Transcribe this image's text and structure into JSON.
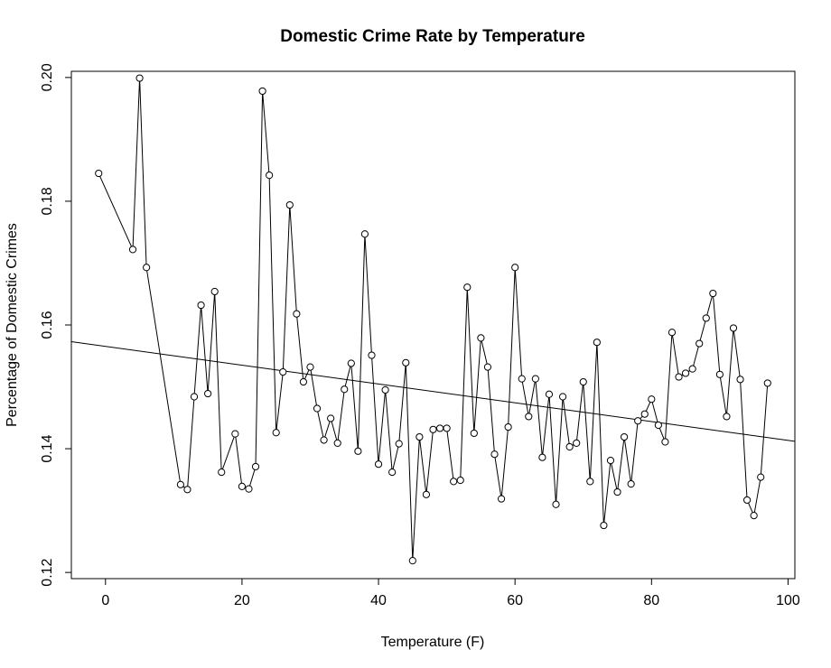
{
  "chart_data": {
    "type": "line",
    "title": "Domestic Crime Rate by Temperature",
    "xlabel": "Temperature (F)",
    "ylabel": "Percentage of Domestic Crimes",
    "xlim": [
      -5,
      101
    ],
    "ylim": [
      0.119,
      0.201
    ],
    "x_ticks": [
      0,
      20,
      40,
      60,
      80,
      100
    ],
    "x_tick_labels": [
      "0",
      "20",
      "40",
      "60",
      "80",
      "100"
    ],
    "y_ticks": [
      0.12,
      0.14,
      0.16,
      0.18,
      0.2
    ],
    "y_tick_labels": [
      "0.12",
      "0.14",
      "0.16",
      "0.18",
      "0.20"
    ],
    "grid": false,
    "marker": "open-circle",
    "series": [
      {
        "x": [
          -1,
          4,
          5,
          6,
          11,
          12,
          13,
          14,
          15,
          16,
          17,
          19,
          20,
          21,
          22,
          23,
          24,
          25,
          26,
          27,
          28,
          29,
          30,
          31,
          32,
          33,
          34,
          35,
          36,
          37,
          38,
          39,
          40,
          41,
          42,
          43,
          44,
          45,
          46,
          47,
          48,
          49,
          50,
          51,
          52,
          53,
          54,
          55,
          56,
          57,
          58,
          59,
          60,
          61,
          62,
          63,
          64,
          65,
          66,
          67,
          68,
          69,
          70,
          71,
          72,
          73,
          74,
          75,
          76,
          77,
          78,
          79,
          80,
          81,
          82,
          83,
          84,
          85,
          86,
          87,
          88,
          89,
          90,
          91,
          92,
          93,
          94,
          95,
          96,
          97
        ],
        "y": [
          0.1845,
          0.1722,
          0.1999,
          0.1693,
          0.1342,
          0.1334,
          0.1484,
          0.1632,
          0.1489,
          0.1654,
          0.1362,
          0.1424,
          0.1339,
          0.1335,
          0.1371,
          0.1978,
          0.1842,
          0.1426,
          0.1524,
          0.1794,
          0.1618,
          0.1508,
          0.1532,
          0.1465,
          0.1414,
          0.1449,
          0.1409,
          0.1496,
          0.1538,
          0.1396,
          0.1747,
          0.1551,
          0.1375,
          0.1495,
          0.1362,
          0.1408,
          0.1539,
          0.1219,
          0.1419,
          0.1326,
          0.1431,
          0.1433,
          0.1433,
          0.1347,
          0.1349,
          0.1661,
          0.1425,
          0.1579,
          0.1532,
          0.1391,
          0.1319,
          0.1435,
          0.1693,
          0.1513,
          0.1452,
          0.1513,
          0.1386,
          0.1488,
          0.131,
          0.1484,
          0.1403,
          0.1409,
          0.1508,
          0.1347,
          0.1572,
          0.1276,
          0.1381,
          0.133,
          0.1419,
          0.1343,
          0.1445,
          0.1456,
          0.148,
          0.1438,
          0.1411,
          0.1588,
          0.1516,
          0.1522,
          0.1529,
          0.157,
          0.1611,
          0.1651,
          0.152,
          0.1452,
          0.1595,
          0.1512,
          0.1317,
          0.1292,
          0.1354,
          0.1506
        ]
      }
    ],
    "trend_line": {
      "x": [
        -5,
        101
      ],
      "y": [
        0.1573,
        0.1412
      ]
    }
  }
}
